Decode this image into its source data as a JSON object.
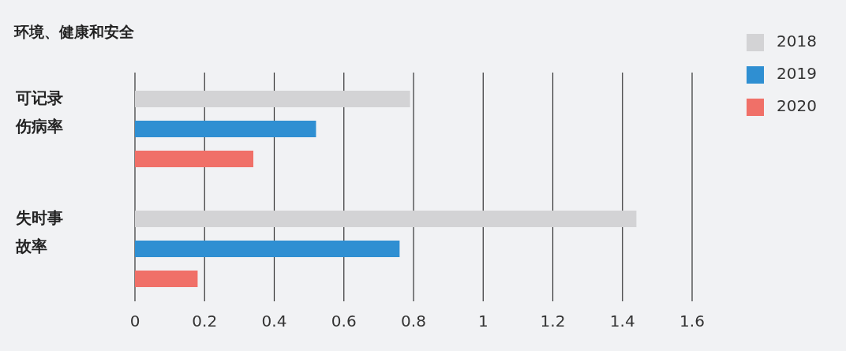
{
  "chart_data": {
    "type": "bar",
    "orientation": "horizontal",
    "title": "环境、健康和安全",
    "categories": [
      "可记录伤病率",
      "失时事故率"
    ],
    "series": [
      {
        "name": "2018",
        "color": "#d3d3d5",
        "values": [
          0.79,
          1.44
        ]
      },
      {
        "name": "2019",
        "color": "#2f8fd2",
        "values": [
          0.52,
          0.76
        ]
      },
      {
        "name": "2020",
        "color": "#f07068",
        "values": [
          0.34,
          0.18
        ]
      }
    ],
    "xlim": [
      0,
      1.6
    ],
    "xticks": [
      0,
      0.2,
      0.4,
      0.6,
      0.8,
      1,
      1.2,
      1.4,
      1.6
    ],
    "grid": "x",
    "legend": "top right"
  }
}
